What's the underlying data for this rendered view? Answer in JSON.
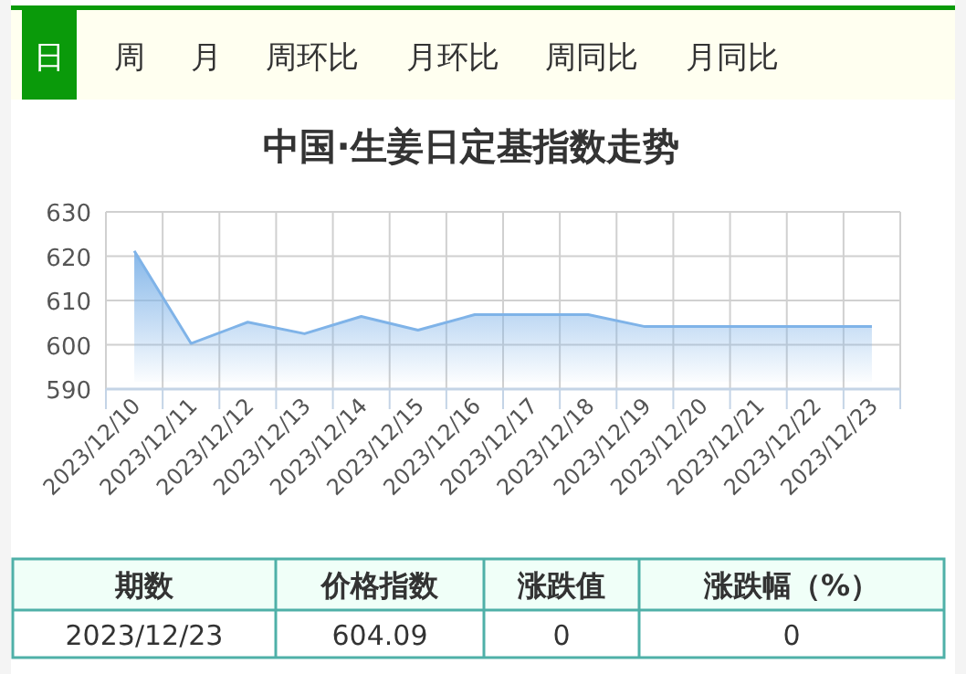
{
  "chart_data": [
    {
      "type": "other",
      "annotations": [
        "日",
        "周",
        "月",
        "周环比",
        "月环比",
        "周同比",
        "月同比"
      ]
    },
    {
      "type": "area",
      "title": "中国·生姜日定基指数走势",
      "categories": [
        "2023/12/10",
        "2023/12/11",
        "2023/12/12",
        "2023/12/13",
        "2023/12/14",
        "2023/12/15",
        "2023/12/16",
        "2023/12/17",
        "2023/12/18",
        "2023/12/19",
        "2023/12/20",
        "2023/12/21",
        "2023/12/22",
        "2023/12/23"
      ],
      "series": [
        {
          "color": "#7fb3e8",
          "values": [
            621.2,
            600.3,
            605.1,
            602.5,
            606.4,
            603.3,
            606.8,
            606.8,
            606.8,
            604.1,
            604.1,
            604.1,
            604.1,
            604.1
          ]
        }
      ],
      "ylim": [
        590,
        630
      ],
      "yticks": [
        590,
        600,
        610,
        620,
        630
      ],
      "grid": true,
      "marker": "none",
      "line_style": "solid"
    },
    {
      "type": "other",
      "annotations": [
        "期数",
        "价格指数",
        "涨跌值",
        "涨跌幅（%）",
        "2023/12/23",
        "604.09",
        "0",
        "0"
      ]
    }
  ]
}
